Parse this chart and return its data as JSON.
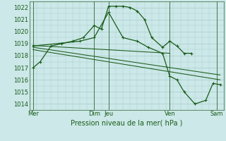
{
  "xlabel": "Pression niveau de la mer( hPa )",
  "ylim": [
    1013.5,
    1022.5
  ],
  "xlim": [
    0,
    270
  ],
  "yticks": [
    1014,
    1015,
    1016,
    1017,
    1018,
    1019,
    1020,
    1021,
    1022
  ],
  "xtick_positions": [
    5,
    90,
    110,
    195,
    260
  ],
  "xtick_labels": [
    "Mer",
    "Dim",
    "Jeu",
    "Ven",
    "Sam"
  ],
  "vlines": [
    5,
    90,
    110,
    195,
    260
  ],
  "background_color": "#cce8e8",
  "grid_color": "#aacccc",
  "line_color": "#1a5c1a",
  "series1_x": [
    5,
    15,
    30,
    45,
    60,
    75,
    90,
    100,
    110,
    120,
    130,
    140,
    150,
    160,
    170,
    185,
    195,
    205,
    215,
    225
  ],
  "series1_y": [
    1017.0,
    1017.5,
    1018.8,
    1019.0,
    1019.2,
    1019.5,
    1020.5,
    1020.2,
    1022.1,
    1022.1,
    1022.1,
    1022.0,
    1021.7,
    1021.0,
    1019.5,
    1018.7,
    1019.2,
    1018.8,
    1018.2,
    1018.2
  ],
  "series2_x": [
    5,
    70,
    90,
    110,
    130,
    150,
    165,
    185,
    195,
    205,
    215,
    230,
    245,
    255,
    265
  ],
  "series2_y": [
    1018.8,
    1019.2,
    1019.5,
    1021.6,
    1019.5,
    1019.2,
    1018.7,
    1018.2,
    1016.3,
    1016.0,
    1015.0,
    1014.0,
    1014.3,
    1015.7,
    1015.6
  ],
  "trend1_x": [
    5,
    195
  ],
  "trend1_y": [
    1018.85,
    1018.2
  ],
  "trend2_x": [
    5,
    265
  ],
  "trend2_y": [
    1018.7,
    1016.4
  ],
  "trend3_x": [
    5,
    265
  ],
  "trend3_y": [
    1018.5,
    1016.0
  ]
}
